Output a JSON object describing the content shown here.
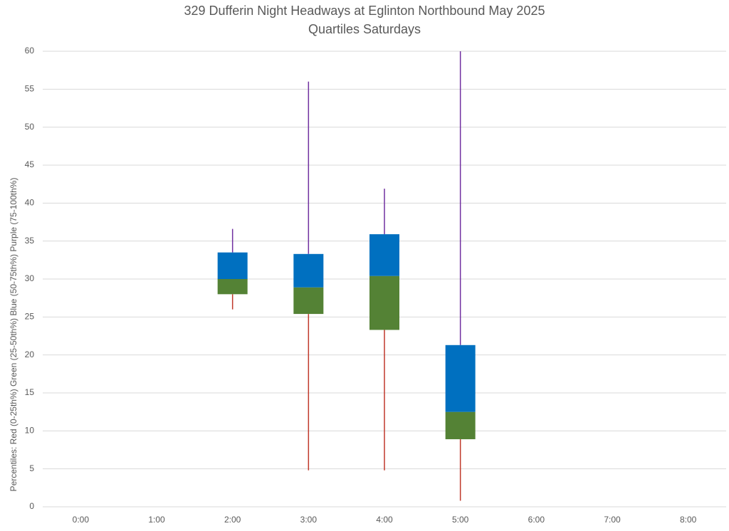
{
  "chart_data": {
    "type": "box",
    "title": "329 Dufferin Night Headways at Eglinton Northbound May 2025",
    "subtitle": "Quartiles Saturdays",
    "y_label": "Percentiles:  Red (0-25th%)  Green (25-50th%)  Blue (50-75th%)  Purple (75-100th%)",
    "categories": [
      "0:00",
      "1:00",
      "2:00",
      "3:00",
      "4:00",
      "5:00",
      "6:00",
      "7:00",
      "8:00"
    ],
    "min": [
      null,
      null,
      26.0,
      4.8,
      4.8,
      0.8,
      null,
      null,
      null
    ],
    "q1": [
      null,
      null,
      28.0,
      25.4,
      23.3,
      8.9,
      null,
      null,
      null
    ],
    "median": [
      null,
      null,
      30.0,
      28.9,
      30.4,
      12.5,
      null,
      null,
      null
    ],
    "q3": [
      null,
      null,
      33.5,
      33.3,
      35.9,
      21.3,
      null,
      null,
      null
    ],
    "max": [
      null,
      null,
      36.6,
      56.0,
      41.9,
      60.0,
      null,
      null,
      null
    ],
    "colors": {
      "lower_whisker": "#c0392b",
      "lower_box": "#548235",
      "upper_box": "#0070c0",
      "upper_whisker": "#7030a0"
    },
    "ylim": [
      0,
      60
    ],
    "yticks": [
      0,
      5,
      10,
      15,
      20,
      25,
      30,
      35,
      40,
      45,
      50,
      55,
      60
    ],
    "grid": true
  }
}
